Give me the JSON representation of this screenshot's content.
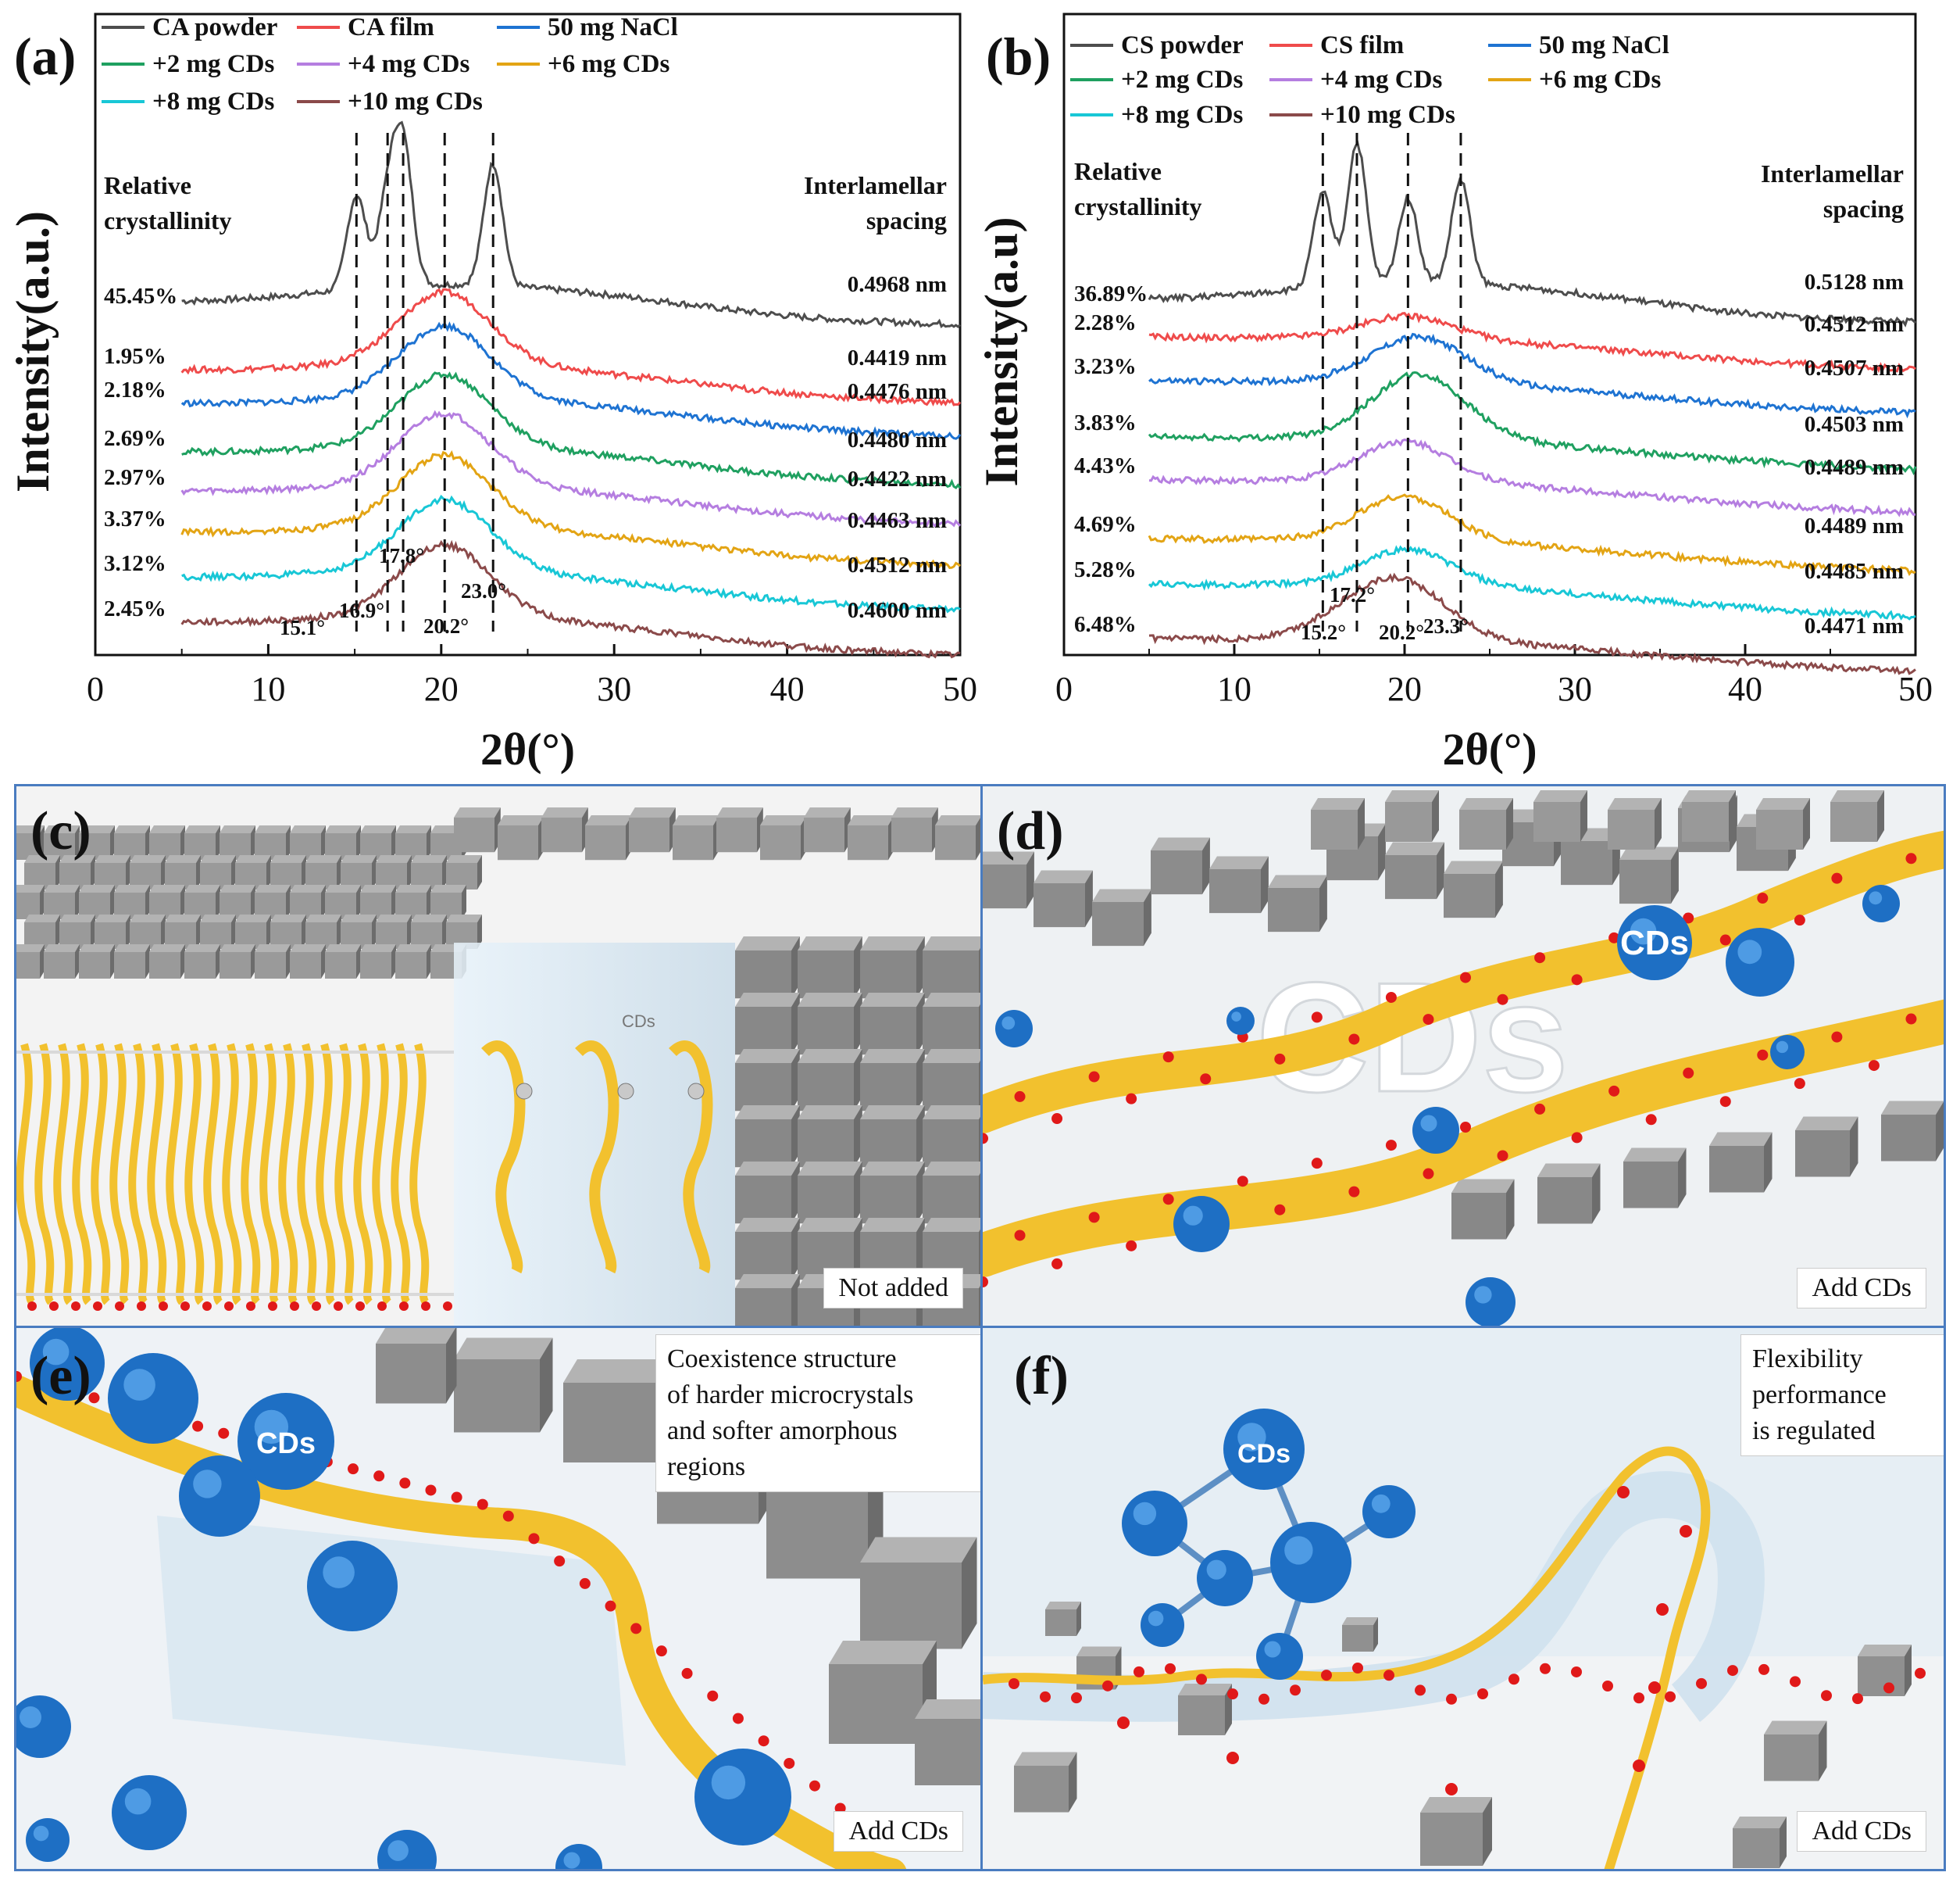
{
  "chart_data": [
    {
      "type": "line",
      "panel_label": "(a)",
      "xlabel": "2θ(°)",
      "ylabel": "Intensity(a.u.)",
      "xlim": [
        0,
        50
      ],
      "xticks": [
        0,
        10,
        20,
        30,
        40,
        50
      ],
      "left_heading": [
        "Relative",
        "crystallinity"
      ],
      "right_heading": [
        "Interlamellar",
        "spacing"
      ],
      "legend": [
        {
          "name": "CA powder",
          "color": "#4d4d4d"
        },
        {
          "name": "CA film",
          "color": "#ef4b4b"
        },
        {
          "name": "50 mg NaCl",
          "color": "#1e73d2"
        },
        {
          "name": "+2 mg CDs",
          "color": "#1fa060"
        },
        {
          "name": "+4 mg CDs",
          "color": "#b57ee0"
        },
        {
          "name": "+6 mg CDs",
          "color": "#e3a414"
        },
        {
          "name": "+8 mg CDs",
          "color": "#18c7d6"
        },
        {
          "name": "+10 mg CDs",
          "color": "#8b4a4a"
        }
      ],
      "series": [
        {
          "name": "CA powder",
          "crystallinity": "45.45%",
          "spacing": "0.4968 nm",
          "peaks": [
            [
              15.1,
              1.0
            ],
            [
              16.9,
              0.9
            ],
            [
              17.8,
              1.45
            ],
            [
              23.0,
              1.3
            ]
          ]
        },
        {
          "name": "CA film",
          "crystallinity": "1.95%",
          "spacing": "0.4419 nm",
          "peaks": [
            [
              20.2,
              1.0
            ]
          ]
        },
        {
          "name": "50 mg NaCl",
          "crystallinity": "2.18%",
          "spacing": "0.4476 nm",
          "peaks": [
            [
              20.2,
              1.0
            ]
          ]
        },
        {
          "name": "+2 mg CDs",
          "crystallinity": "2.69%",
          "spacing": "0.4480 nm",
          "peaks": [
            [
              20.2,
              1.0
            ]
          ]
        },
        {
          "name": "+4 mg CDs",
          "crystallinity": "2.97%",
          "spacing": "0.4422 nm",
          "peaks": [
            [
              20.2,
              1.0
            ]
          ]
        },
        {
          "name": "+6 mg CDs",
          "crystallinity": "3.37%",
          "spacing": "0.4463 nm",
          "peaks": [
            [
              20.2,
              1.0
            ]
          ]
        },
        {
          "name": "+8 mg CDs",
          "crystallinity": "3.12%",
          "spacing": "0.4512 nm",
          "peaks": [
            [
              20.2,
              1.0
            ]
          ]
        },
        {
          "name": "+10 mg CDs",
          "crystallinity": "2.45%",
          "spacing": "0.4600 nm",
          "peaks": [
            [
              20.2,
              1.0
            ]
          ]
        }
      ],
      "annotations": [
        {
          "x": 15.1,
          "text": "15.1°"
        },
        {
          "x": 16.9,
          "text": "16.9°"
        },
        {
          "x": 17.8,
          "text": "17.8°"
        },
        {
          "x": 20.2,
          "text": "20.2°"
        },
        {
          "x": 23.0,
          "text": "23.0°"
        }
      ]
    },
    {
      "type": "line",
      "panel_label": "(b)",
      "xlabel": "2θ(°)",
      "ylabel": "Intensity(a.u)",
      "xlim": [
        0,
        50
      ],
      "xticks": [
        0,
        10,
        20,
        30,
        40,
        50
      ],
      "left_heading": [
        "Relative",
        "crystallinity"
      ],
      "right_heading": [
        "Interlamellar",
        "spacing"
      ],
      "legend": [
        {
          "name": "CS powder",
          "color": "#4d4d4d"
        },
        {
          "name": "CS film",
          "color": "#ef4b4b"
        },
        {
          "name": "50 mg NaCl",
          "color": "#1e73d2"
        },
        {
          "name": "+2 mg CDs",
          "color": "#1fa060"
        },
        {
          "name": "+4 mg CDs",
          "color": "#b57ee0"
        },
        {
          "name": "+6 mg CDs",
          "color": "#e3a414"
        },
        {
          "name": "+8 mg CDs",
          "color": "#18c7d6"
        },
        {
          "name": "+10 mg CDs",
          "color": "#8b4a4a"
        }
      ],
      "series": [
        {
          "name": "CS powder",
          "crystallinity": "36.89%",
          "spacing": "0.5128 nm",
          "peaks": [
            [
              15.2,
              1.0
            ],
            [
              17.2,
              1.5
            ],
            [
              20.2,
              0.9
            ],
            [
              23.3,
              1.1
            ]
          ]
        },
        {
          "name": "CS film",
          "crystallinity": "2.28%",
          "spacing": "0.4512 nm",
          "peaks": [
            [
              20.2,
              0.55
            ]
          ]
        },
        {
          "name": "50 mg NaCl",
          "crystallinity": "3.23%",
          "spacing": "0.4507 nm",
          "peaks": [
            [
              20.2,
              0.7
            ],
            [
              21.8,
              0.5
            ]
          ]
        },
        {
          "name": "+2 mg CDs",
          "crystallinity": "3.83%",
          "spacing": "0.4503 nm",
          "peaks": [
            [
              20.2,
              1.0
            ],
            [
              21.8,
              0.7
            ]
          ]
        },
        {
          "name": "+4 mg CDs",
          "crystallinity": "4.43%",
          "spacing": "0.4489 nm",
          "peaks": [
            [
              20.0,
              1.0
            ]
          ]
        },
        {
          "name": "+6 mg CDs",
          "crystallinity": "4.69%",
          "spacing": "0.4489 nm",
          "peaks": [
            [
              20.0,
              1.1
            ]
          ]
        },
        {
          "name": "+8 mg CDs",
          "crystallinity": "5.28%",
          "spacing": "0.4485 nm",
          "peaks": [
            [
              20.2,
              0.9
            ]
          ]
        },
        {
          "name": "+10 mg CDs",
          "crystallinity": "6.48%",
          "spacing": "0.4471 nm",
          "peaks": [
            [
              17.2,
              0.6
            ],
            [
              20.2,
              1.2
            ]
          ]
        }
      ],
      "annotations": [
        {
          "x": 15.2,
          "text": "15.2°"
        },
        {
          "x": 17.2,
          "text": "17.2°"
        },
        {
          "x": 20.2,
          "text": "20.2°"
        },
        {
          "x": 23.3,
          "text": "23.3°"
        }
      ]
    }
  ],
  "panels": {
    "c": {
      "label": "(c)",
      "tag": "Not added",
      "inset": "CDs"
    },
    "d": {
      "label": "(d)",
      "tag": "Add CDs",
      "big_text": "CDs",
      "bubble": "CDs"
    },
    "e": {
      "label": "(e)",
      "tag": "Add CDs",
      "bubble": "CDs",
      "note": [
        "Coexistence structure",
        "of harder microcrystals",
        "and softer amorphous",
        "regions"
      ]
    },
    "f": {
      "label": "(f)",
      "tag": "Add CDs",
      "bubble": "CDs",
      "note": [
        "Flexibility",
        "performance",
        "is regulated"
      ]
    }
  },
  "colors": {
    "frame": "#4a7cc0",
    "rubber": "#f2c12e",
    "cd_blue": "#1e6fc4",
    "stone": "#8d8d8d",
    "red_dot": "#e01919"
  }
}
